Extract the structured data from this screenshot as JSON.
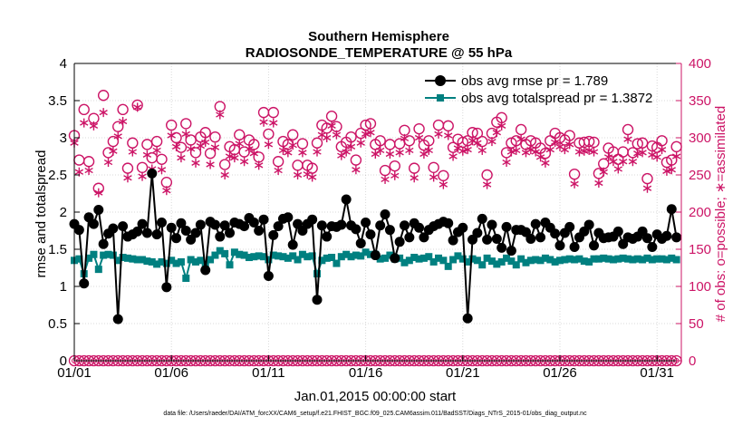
{
  "chart_data": {
    "type": "line",
    "title": "Southern Hemisphere",
    "subtitle": "RADIOSONDE_TEMPERATURE @ 55 hPa",
    "xlabel": "Jan.01,2015 00:00:00 start",
    "ylabel": "rmse and totalspread",
    "ylabel_right": "# of obs: o=possible; ∗=assimilated",
    "footnote": "data file: /Users/raeder/DAI/ATM_forcXX/CAM6_setup/f.e21.FHIST_BGC.f09_025.CAM6assim.011/BadSST/Diags_NTrS_2015-01/obs_diag_output.nc",
    "xlim": [
      1,
      32.25
    ],
    "ylim": [
      0,
      4
    ],
    "ylim_right": [
      0,
      400
    ],
    "x_ticks": [
      1,
      6,
      11,
      16,
      21,
      26,
      31
    ],
    "x_tick_labels": [
      "01/01",
      "01/06",
      "01/11",
      "01/16",
      "01/21",
      "01/26",
      "01/31"
    ],
    "y_ticks": [
      0,
      0.5,
      1,
      1.5,
      2,
      2.5,
      3,
      3.5,
      4
    ],
    "y_tick_labels": [
      "0",
      "0.5",
      "1",
      "1.5",
      "2",
      "2.5",
      "3",
      "3.5",
      "4"
    ],
    "y_right_ticks": [
      0,
      50,
      100,
      150,
      200,
      250,
      300,
      350,
      400
    ],
    "y_right_tick_labels": [
      "0",
      "50",
      "100",
      "150",
      "200",
      "250",
      "300",
      "350",
      "400"
    ],
    "x_start": 1.0,
    "x_step": 0.25,
    "legend": [
      "obs avg rmse pr = 1.789",
      "obs avg totalspread pr = 1.3872"
    ],
    "colors": {
      "rmse": "#000000",
      "spread": "#008080",
      "obs": "#cc1466"
    },
    "series": [
      {
        "name": "obs avg rmse pr = 1.789",
        "values": [
          1.84,
          1.76,
          1.04,
          1.93,
          1.84,
          2.03,
          1.57,
          1.71,
          1.78,
          0.56,
          1.81,
          1.67,
          1.7,
          1.74,
          1.84,
          1.72,
          2.52,
          1.7,
          1.86,
          0.99,
          1.79,
          1.65,
          1.85,
          1.75,
          1.63,
          1.72,
          1.83,
          1.22,
          1.87,
          1.83,
          1.67,
          1.82,
          1.72,
          1.86,
          1.84,
          1.81,
          1.92,
          1.86,
          1.75,
          1.9,
          1.14,
          1.69,
          1.81,
          1.91,
          1.93,
          1.56,
          1.84,
          1.75,
          1.84,
          1.9,
          0.82,
          1.82,
          1.67,
          1.81,
          1.8,
          1.83,
          2.17,
          1.82,
          1.77,
          1.58,
          1.86,
          1.7,
          1.42,
          1.82,
          1.97,
          1.76,
          1.38,
          1.6,
          1.82,
          1.66,
          1.85,
          1.79,
          1.66,
          1.76,
          1.81,
          1.84,
          1.87,
          1.85,
          1.62,
          1.73,
          1.79,
          0.57,
          1.63,
          1.72,
          1.91,
          1.63,
          1.83,
          1.64,
          1.52,
          1.8,
          1.48,
          1.76,
          1.76,
          1.73,
          1.64,
          1.84,
          1.66,
          1.86,
          1.79,
          1.71,
          1.55,
          1.72,
          1.8,
          1.53,
          1.66,
          1.74,
          1.83,
          1.55,
          1.72,
          1.65,
          1.66,
          1.67,
          1.74,
          1.57,
          1.66,
          1.64,
          1.67,
          1.74,
          1.65,
          1.53,
          1.7,
          1.64,
          1.68,
          2.04,
          1.66
        ]
      },
      {
        "name": "obs avg totalspread pr = 1.3872",
        "values": [
          1.35,
          1.37,
          1.17,
          1.38,
          1.43,
          1.23,
          1.42,
          1.43,
          1.42,
          1.35,
          1.39,
          1.38,
          1.37,
          1.36,
          1.36,
          1.34,
          1.33,
          1.3,
          1.33,
          1.31,
          1.35,
          1.31,
          1.33,
          1.11,
          1.36,
          1.33,
          1.35,
          1.28,
          1.36,
          1.42,
          1.48,
          1.44,
          1.29,
          1.46,
          1.43,
          1.42,
          1.39,
          1.4,
          1.41,
          1.4,
          1.36,
          1.42,
          1.41,
          1.4,
          1.38,
          1.41,
          1.36,
          1.43,
          1.4,
          1.41,
          1.17,
          1.35,
          1.38,
          1.39,
          1.31,
          1.4,
          1.43,
          1.4,
          1.42,
          1.41,
          1.46,
          1.43,
          1.43,
          1.37,
          1.38,
          1.42,
          1.37,
          1.38,
          1.32,
          1.35,
          1.39,
          1.37,
          1.38,
          1.4,
          1.33,
          1.38,
          1.35,
          1.27,
          1.36,
          1.41,
          1.37,
          1.33,
          1.37,
          1.35,
          1.29,
          1.38,
          1.34,
          1.3,
          1.33,
          1.38,
          1.34,
          1.29,
          1.37,
          1.32,
          1.35,
          1.36,
          1.35,
          1.38,
          1.36,
          1.33,
          1.35,
          1.36,
          1.37,
          1.36,
          1.37,
          1.34,
          1.33,
          1.37,
          1.37,
          1.38,
          1.37,
          1.36,
          1.37,
          1.38,
          1.37,
          1.36,
          1.37,
          1.36,
          1.38,
          1.36,
          1.37,
          1.37,
          1.36,
          1.38,
          1.36
        ]
      },
      {
        "name": "possible",
        "values": [
          303,
          270,
          338,
          268,
          326,
          232,
          357,
          280,
          295,
          315,
          338,
          259,
          293,
          344,
          260,
          291,
          273,
          295,
          271,
          240,
          317,
          300,
          287,
          319,
          297,
          280,
          301,
          307,
          279,
          301,
          342,
          264,
          288,
          284,
          304,
          281,
          297,
          291,
          274,
          334,
          305,
          334,
          268,
          295,
          291,
          304,
          263,
          292,
          263,
          259,
          293,
          317,
          313,
          329,
          315,
          288,
          294,
          301,
          270,
          306,
          317,
          319,
          291,
          296,
          256,
          291,
          262,
          292,
          310,
          296,
          259,
          312,
          290,
          296,
          260,
          317,
          249,
          316,
          287,
          298,
          294,
          296,
          307,
          306,
          295,
          250,
          306,
          321,
          327,
          280,
          293,
          296,
          311,
          291,
          296,
          293,
          286,
          279,
          296,
          306,
          300,
          297,
          303,
          251,
          293,
          294,
          295,
          294,
          252,
          265,
          286,
          281,
          271,
          281,
          311,
          280,
          292,
          293,
          245,
          289,
          287,
          296,
          267,
          270,
          288
        ]
      },
      {
        "name": "assimilated",
        "values": [
          293,
          254,
          320,
          256,
          316,
          226,
          334,
          267,
          282,
          302,
          322,
          246,
          281,
          341,
          248,
          277,
          258,
          283,
          257,
          229,
          303,
          288,
          273,
          305,
          285,
          266,
          289,
          294,
          264,
          287,
          331,
          250,
          275,
          273,
          292,
          268,
          285,
          279,
          263,
          321,
          291,
          320,
          256,
          283,
          280,
          290,
          250,
          280,
          251,
          247,
          281,
          304,
          300,
          316,
          304,
          276,
          281,
          288,
          257,
          293,
          305,
          307,
          278,
          283,
          244,
          278,
          249,
          280,
          299,
          283,
          246,
          300,
          278,
          283,
          247,
          305,
          237,
          303,
          275,
          286,
          282,
          284,
          296,
          293,
          283,
          237,
          295,
          307,
          316,
          267,
          281,
          283,
          298,
          280,
          284,
          281,
          274,
          266,
          284,
          294,
          288,
          284,
          291,
          238,
          281,
          282,
          283,
          281,
          239,
          254,
          274,
          268,
          258,
          268,
          298,
          268,
          279,
          280,
          232,
          277,
          274,
          284,
          255,
          257,
          275
        ]
      },
      {
        "name": "possible (bottom row)",
        "values": [
          0,
          0,
          0,
          0,
          0,
          0,
          0,
          0,
          0,
          0,
          0,
          0,
          0,
          0,
          0,
          0,
          0,
          0,
          0,
          0,
          0,
          0,
          0,
          0,
          0,
          0,
          0,
          0,
          0,
          0,
          0,
          0,
          0,
          0,
          0,
          0,
          0,
          0,
          0,
          0,
          0,
          0,
          0,
          0,
          0,
          0,
          0,
          0,
          0,
          0,
          0,
          0,
          0,
          0,
          0,
          0,
          0,
          0,
          0,
          0,
          0,
          0,
          0,
          0,
          0,
          0,
          0,
          0,
          0,
          0,
          0,
          0,
          0,
          0,
          0,
          0,
          0,
          0,
          0,
          0,
          0,
          0,
          0,
          0,
          0,
          0,
          0,
          0,
          0,
          0,
          0,
          0,
          0,
          0,
          0,
          0,
          0,
          0,
          0,
          0,
          0,
          0,
          0,
          0,
          0,
          0,
          0,
          0,
          0,
          0,
          0,
          0,
          0,
          0,
          0,
          0,
          0,
          0,
          0,
          0,
          0,
          0,
          0,
          0,
          0
        ]
      }
    ]
  }
}
